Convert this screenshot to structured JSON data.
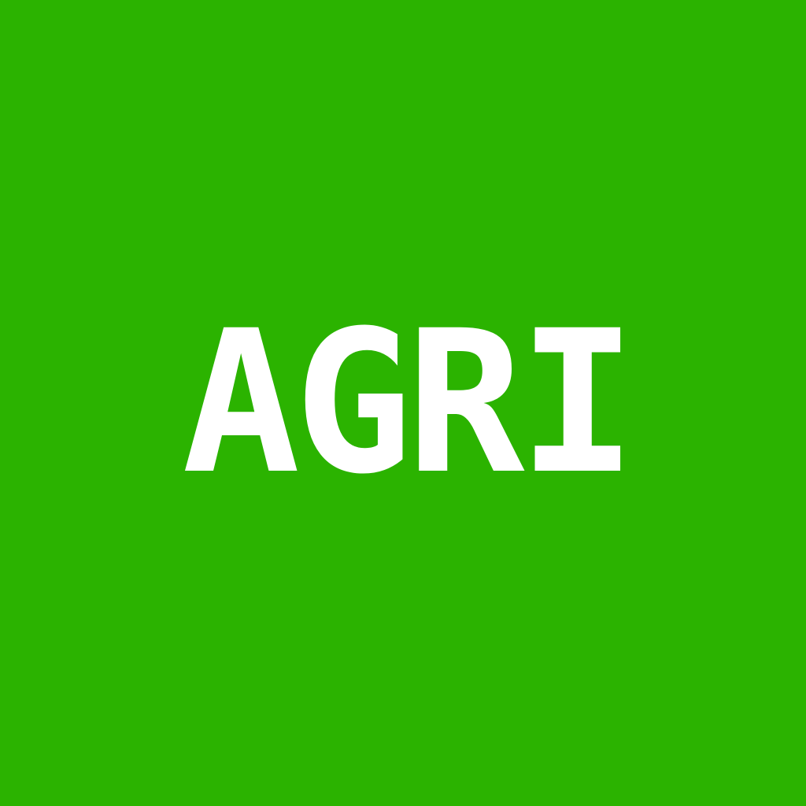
{
  "tile": {
    "text": "AGRI",
    "background_color": "#2bb300",
    "text_color": "#ffffff"
  }
}
